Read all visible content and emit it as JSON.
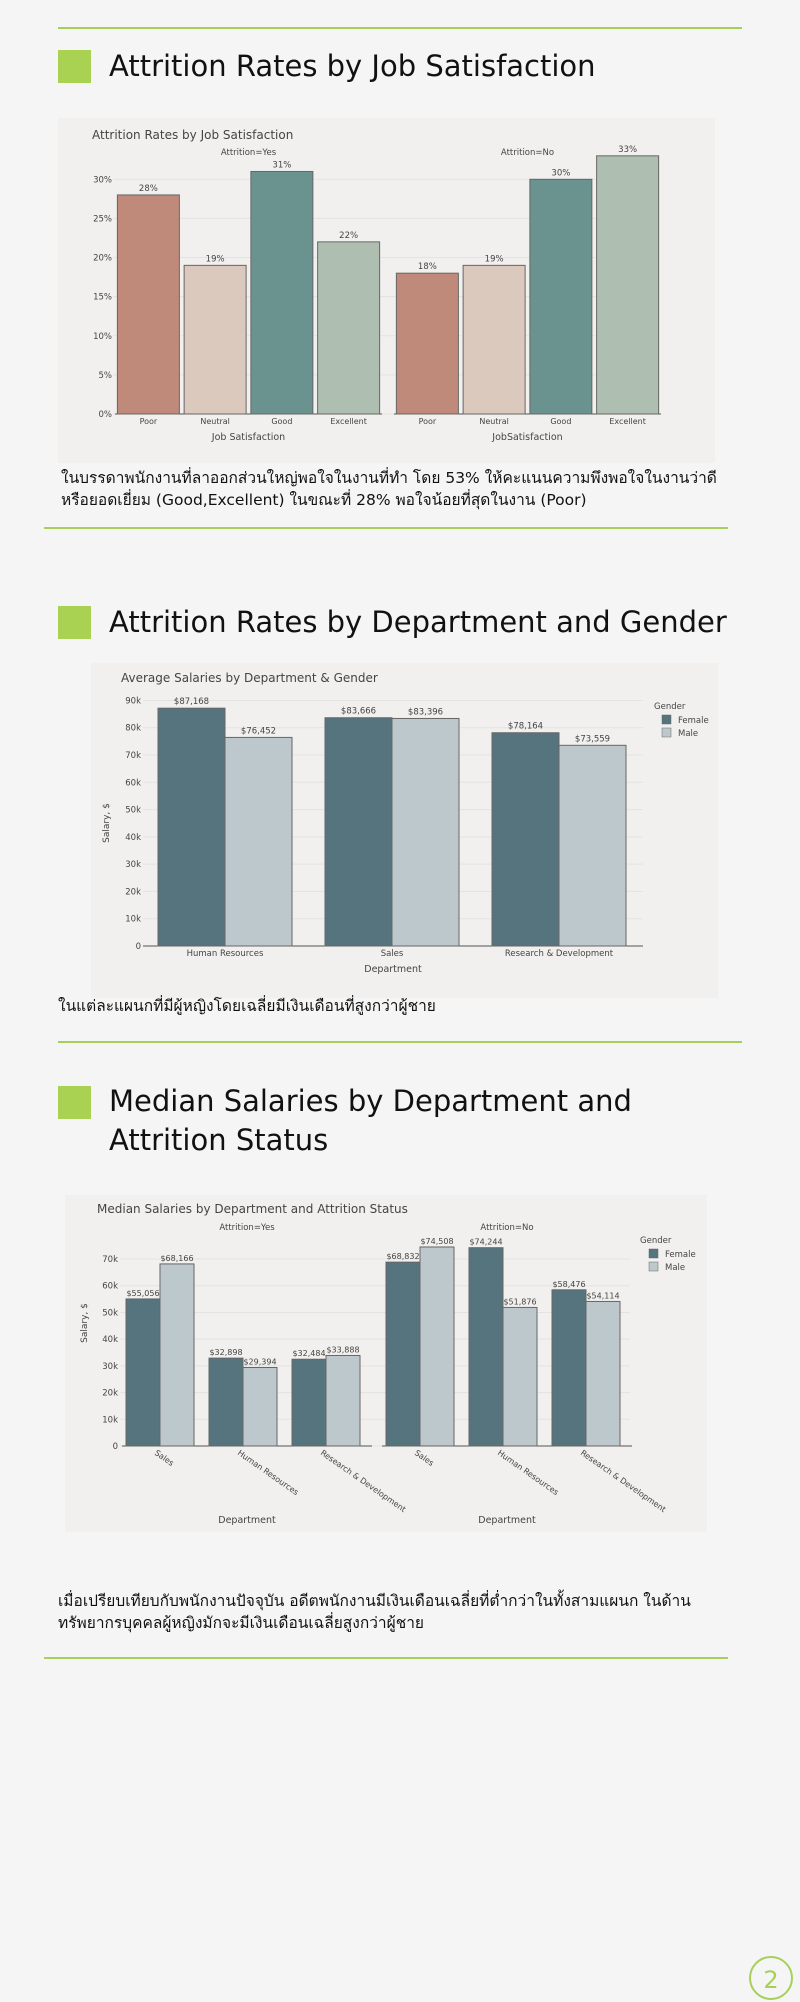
{
  "sections": [
    {
      "heading": "Attrition Rates by Job Satisfaction",
      "paragraph": "ในบรรดาพนักงานที่ลาออกส่วนใหญ่พอใจในงานที่ทำ โดย 53% ให้คะแนนความพึงพอใจในงานว่าดีหรือยอดเยี่ยม (Good,Excellent) ในขณะที่ 28% พอใจน้อยที่สุดในงาน (Poor)"
    },
    {
      "heading": "Attrition Rates by Department and Gender",
      "paragraph": "ในแต่ละแผนกที่มีผู้หญิงโดยเฉลี่ยมีเงินเดือนที่สูงกว่าผู้ชาย"
    },
    {
      "heading": "Median Salaries by Department and Attrition Status",
      "paragraph": "เมื่อเปรียบเทียบกับพนักงานปัจจุบัน อดีตพนักงานมีเงินเดือนเฉลี่ยที่ต่ำกว่าในทั้งสามแผนก ในด้านทรัพยากรบุคคลผู้หญิงมักจะมีเงินเดือนเฉลี่ยสูงกว่าผู้ชาย"
    }
  ],
  "page_number": "2",
  "colors": {
    "accent": "#a9d152",
    "female": "#56747e",
    "male": "#bdc8cc",
    "poor": "#c08a7b",
    "neutral": "#dcc9bd",
    "good": "#6a9390",
    "excellent": "#aebfb1"
  },
  "chart_data": [
    {
      "type": "bar",
      "title": "Attrition Rates by Job Satisfaction",
      "panels": [
        {
          "label": "Attrition=Yes",
          "xlabel": "Job Satisfaction",
          "categories": [
            "Poor",
            "Neutral",
            "Good",
            "Excellent"
          ],
          "values": [
            28,
            19,
            31,
            22
          ],
          "value_labels": [
            "28%",
            "19%",
            "31%",
            "22%"
          ]
        },
        {
          "label": "Attrition=No",
          "xlabel": "JobSatisfaction",
          "categories": [
            "Poor",
            "Neutral",
            "Good",
            "Excellent"
          ],
          "values": [
            18,
            19,
            30,
            33
          ],
          "value_labels": [
            "18%",
            "19%",
            "30%",
            "33%"
          ]
        }
      ],
      "yticks": [
        "0%",
        "5%",
        "10%",
        "15%",
        "20%",
        "25%",
        "30%"
      ],
      "ytick_values": [
        0,
        5,
        10,
        15,
        20,
        25,
        30
      ],
      "ylim": [
        0,
        34
      ]
    },
    {
      "type": "bar",
      "title": "Average Salaries by Department & Gender",
      "xlabel": "Department",
      "ylabel": "Salary, $",
      "categories": [
        "Human Resources",
        "Sales",
        "Research & Development"
      ],
      "series": [
        {
          "name": "Female",
          "values": [
            87168,
            83666,
            78164
          ],
          "labels": [
            "$87,168",
            "$83,666",
            "$78,164"
          ]
        },
        {
          "name": "Male",
          "values": [
            76452,
            83396,
            73559
          ],
          "labels": [
            "$76,452",
            "$83,396",
            "$73,559"
          ]
        }
      ],
      "legend_title": "Gender",
      "yticks": [
        "0",
        "10k",
        "20k",
        "30k",
        "40k",
        "50k",
        "60k",
        "70k",
        "80k",
        "90k"
      ],
      "ytick_values": [
        0,
        10000,
        20000,
        30000,
        40000,
        50000,
        60000,
        70000,
        80000,
        90000
      ],
      "ylim": [
        0,
        92000
      ]
    },
    {
      "type": "bar",
      "title": "Median Salaries by Department and Attrition Status",
      "ylabel": "Salary, $",
      "legend_title": "Gender",
      "series_names": [
        "Female",
        "Male"
      ],
      "panels": [
        {
          "label": "Attrition=Yes",
          "xlabel": "Department",
          "categories": [
            "Sales",
            "Human Resources",
            "Research & Development"
          ],
          "series": [
            {
              "name": "Female",
              "values": [
                55056,
                32898,
                32484
              ],
              "labels": [
                "$55,056",
                "$32,898",
                "$32,484"
              ]
            },
            {
              "name": "Male",
              "values": [
                68166,
                29394,
                33888
              ],
              "labels": [
                "$68,166",
                "$29,394",
                "$33,888"
              ]
            }
          ]
        },
        {
          "label": "Attrition=No",
          "xlabel": "Department",
          "categories": [
            "Sales",
            "Human Resources",
            "Research & Development"
          ],
          "series": [
            {
              "name": "Female",
              "values": [
                68832,
                74244,
                58476
              ],
              "labels": [
                "$68,832",
                "$74,244",
                "$58,476"
              ]
            },
            {
              "name": "Male",
              "values": [
                74508,
                51876,
                54114
              ],
              "labels": [
                "$74,508",
                "$51,876",
                "$54,114"
              ]
            }
          ]
        }
      ],
      "yticks": [
        "0",
        "10k",
        "20k",
        "30k",
        "40k",
        "50k",
        "60k",
        "70k"
      ],
      "ytick_values": [
        0,
        10000,
        20000,
        30000,
        40000,
        50000,
        60000,
        70000
      ],
      "ylim": [
        0,
        76000
      ]
    }
  ]
}
